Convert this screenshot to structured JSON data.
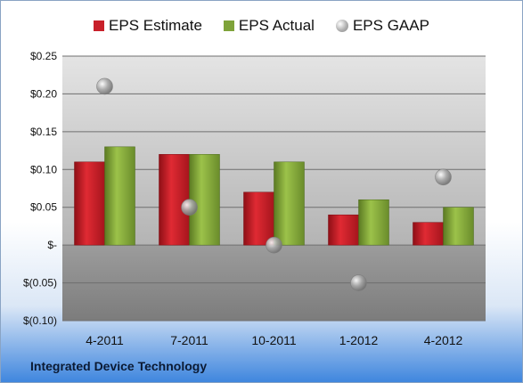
{
  "chart_data": {
    "type": "bar",
    "categories": [
      "4-2011",
      "7-2011",
      "10-2011",
      "1-2012",
      "4-2012"
    ],
    "series": [
      {
        "name": "EPS Estimate",
        "type": "bar",
        "color": "#c8202a",
        "values": [
          0.11,
          0.12,
          0.07,
          0.04,
          0.03
        ]
      },
      {
        "name": "EPS Actual",
        "type": "bar",
        "color": "#7fa33a",
        "values": [
          0.13,
          0.12,
          0.11,
          0.06,
          0.05
        ]
      },
      {
        "name": "EPS GAAP",
        "type": "marker",
        "color": "#9a9a9a",
        "values": [
          0.21,
          0.05,
          0.0,
          -0.05,
          0.09
        ]
      }
    ],
    "ylim": [
      -0.1,
      0.25
    ],
    "yticks": [
      0.25,
      0.2,
      0.15,
      0.1,
      0.05,
      0.0,
      -0.05,
      -0.1
    ],
    "ytick_labels": [
      "$0.25",
      "$0.20",
      "$0.15",
      "$0.10",
      "$0.05",
      "$-",
      "$(0.05)",
      "$(0.10)"
    ],
    "grid": true,
    "legend_position": "top"
  },
  "company": "Integrated Device Technology"
}
